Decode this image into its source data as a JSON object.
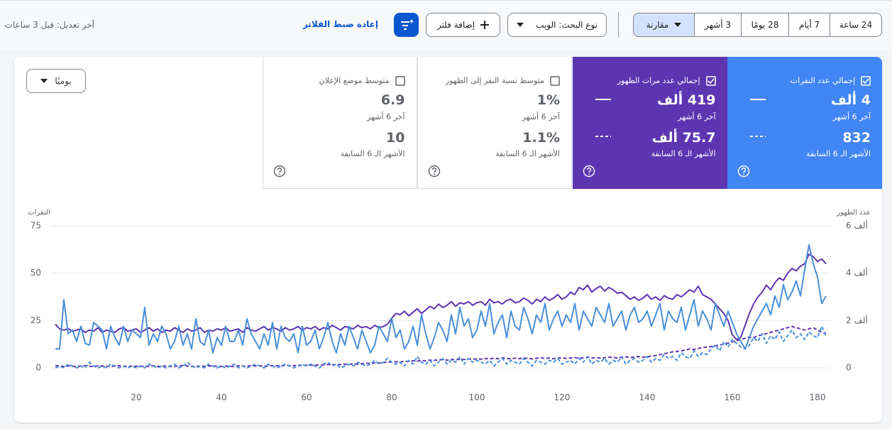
{
  "toolbar": {
    "date_ranges": [
      "24 ساعة",
      "7 أيام",
      "28 يومًا",
      "3 أشهر"
    ],
    "compare": "مقارنة",
    "search_type": "نوع البحث: الويب",
    "add_filter": "إضافة فلتر",
    "reset_filters": "إعادة ضبط الفلاتر",
    "last_updated": "آخر تعديل: قبل 3 ساعات"
  },
  "granularity": "يوميًا",
  "metrics": [
    {
      "label": "إجمالي عدد النقرات",
      "checked": true,
      "color": "#4285f4",
      "current": "4 ألف",
      "current_period": "آخر 6 أشهر",
      "previous": "832",
      "previous_period": "الأشهر الـ 6 السابقة"
    },
    {
      "label": "إجمالي عدد مرات الظهور",
      "checked": true,
      "color": "#5e35b1",
      "current": "419 ألف",
      "current_period": "آخر 6 أشهر",
      "previous": "75.7 ألف",
      "previous_period": "الأشهر الـ 6 السابقة"
    },
    {
      "label": "متوسط نسبة النقر إلى الظهور",
      "checked": false,
      "color": "#ffffff",
      "current": "1%",
      "current_period": "آخر 6 أشهر",
      "previous": "1.1%",
      "previous_period": "الأشهر الـ 6 السابقة"
    },
    {
      "label": "متوسط موضع الإعلان",
      "checked": false,
      "color": "#ffffff",
      "current": "6.9",
      "current_period": "آخر 6 أشهر",
      "previous": "10",
      "previous_period": "الأشهر الـ 6 السابقة"
    }
  ],
  "chart_data": {
    "type": "line",
    "ylabel": "النقرات",
    "y2label": "عدد الظهور",
    "grid": true,
    "xlim": [
      0,
      183
    ],
    "xticks": [
      20,
      40,
      60,
      80,
      100,
      120,
      140,
      160,
      180
    ],
    "ylim": [
      0,
      75
    ],
    "yticks": [
      0,
      25,
      50,
      75
    ],
    "y2lim": [
      0,
      6000
    ],
    "y2ticks": [
      0,
      {
        "value": 2000,
        "label": "2 ألف"
      },
      {
        "value": 4000,
        "label": "4 ألف"
      },
      {
        "value": 6000,
        "label": "6 ألف"
      }
    ],
    "x": [
      1,
      2,
      3,
      4,
      5,
      6,
      7,
      8,
      9,
      10,
      11,
      12,
      13,
      14,
      15,
      16,
      17,
      18,
      19,
      20,
      21,
      22,
      23,
      24,
      25,
      26,
      27,
      28,
      29,
      30,
      31,
      32,
      33,
      34,
      35,
      36,
      37,
      38,
      39,
      40,
      41,
      42,
      43,
      44,
      45,
      46,
      47,
      48,
      49,
      50,
      51,
      52,
      53,
      54,
      55,
      56,
      57,
      58,
      59,
      60,
      61,
      62,
      63,
      64,
      65,
      66,
      67,
      68,
      69,
      70,
      71,
      72,
      73,
      74,
      75,
      76,
      77,
      78,
      79,
      80,
      81,
      82,
      83,
      84,
      85,
      86,
      87,
      88,
      89,
      90,
      91,
      92,
      93,
      94,
      95,
      96,
      97,
      98,
      99,
      100,
      101,
      102,
      103,
      104,
      105,
      106,
      107,
      108,
      109,
      110,
      111,
      112,
      113,
      114,
      115,
      116,
      117,
      118,
      119,
      120,
      121,
      122,
      123,
      124,
      125,
      126,
      127,
      128,
      129,
      130,
      131,
      132,
      133,
      134,
      135,
      136,
      137,
      138,
      139,
      140,
      141,
      142,
      143,
      144,
      145,
      146,
      147,
      148,
      149,
      150,
      151,
      152,
      153,
      154,
      155,
      156,
      157,
      158,
      159,
      160,
      161,
      162,
      163,
      164,
      165,
      166,
      167,
      168,
      169,
      170,
      171,
      172,
      173,
      174,
      175,
      176,
      177,
      178,
      179,
      180,
      181,
      182
    ],
    "series": [
      {
        "color": "#5e35b1",
        "dashed": true,
        "axis": "y2",
        "values": [
          100,
          80,
          60,
          90,
          70,
          60,
          80,
          100,
          70,
          60,
          90,
          80,
          70,
          60,
          80,
          90,
          70,
          60,
          80,
          70,
          60,
          80,
          70,
          90,
          60,
          70,
          80,
          60,
          70,
          90,
          100,
          80,
          70,
          60,
          80,
          70,
          90,
          80,
          70,
          60,
          80,
          70,
          60,
          90,
          80,
          70,
          100,
          80,
          90,
          70,
          80,
          100,
          90,
          80,
          110,
          100,
          90,
          120,
          100,
          110,
          120,
          110,
          130,
          120,
          140,
          130,
          150,
          140,
          160,
          150,
          170,
          160,
          180,
          200,
          190,
          210,
          200,
          230,
          250,
          240,
          260,
          250,
          280,
          270,
          300,
          290,
          310,
          300,
          330,
          320,
          340,
          350,
          330,
          360,
          340,
          370,
          350,
          380,
          360,
          390,
          370,
          400,
          380,
          410,
          390,
          420,
          400,
          380,
          410,
          390,
          420,
          400,
          380,
          410,
          430,
          400,
          420,
          390,
          410,
          430,
          400,
          420,
          440,
          410,
          430,
          450,
          420,
          440,
          410,
          430,
          460,
          440,
          420,
          450,
          470,
          440,
          460,
          480,
          450,
          470,
          500,
          520,
          560,
          600,
          640,
          680,
          700,
          720,
          760,
          800,
          780,
          820,
          860,
          880,
          900,
          940,
          960,
          1000,
          1050,
          1100,
          1150,
          1200,
          1250,
          1300,
          1280,
          1350,
          1400,
          1450,
          1500,
          1550,
          1600,
          1650,
          1700,
          1750,
          1700,
          1650,
          1600,
          1650,
          1700,
          1600,
          1500,
          1450
        ]
      },
      {
        "color": "#4a8fd8",
        "dashed": true,
        "values": [
          0,
          1,
          0,
          2,
          1,
          0,
          1,
          0,
          3,
          1,
          0,
          1,
          0,
          2,
          1,
          0,
          1,
          0,
          1,
          0,
          1,
          0,
          2,
          1,
          0,
          1,
          0,
          1,
          2,
          0,
          1,
          3,
          1,
          0,
          1,
          0,
          2,
          1,
          0,
          1,
          0,
          1,
          2,
          0,
          1,
          0,
          1,
          2,
          1,
          0,
          2,
          1,
          0,
          1,
          2,
          1,
          0,
          1,
          2,
          1,
          2,
          1,
          0,
          2,
          3,
          1,
          2,
          0,
          1,
          2,
          1,
          3,
          2,
          1,
          2,
          4,
          2,
          3,
          5,
          3,
          2,
          3,
          1,
          4,
          2,
          6,
          3,
          2,
          4,
          1,
          3,
          5,
          2,
          4,
          3,
          6,
          2,
          5,
          3,
          4,
          3,
          2,
          4,
          1,
          3,
          5,
          2,
          4,
          3,
          2,
          5,
          3,
          1,
          4,
          3,
          2,
          4,
          3,
          5,
          2,
          3,
          4,
          2,
          5,
          3,
          6,
          2,
          4,
          3,
          5,
          2,
          4,
          3,
          6,
          2,
          4,
          5,
          3,
          4,
          6,
          3,
          5,
          4,
          7,
          5,
          6,
          4,
          8,
          6,
          5,
          9,
          6,
          8,
          7,
          10,
          12,
          9,
          14,
          11,
          15,
          13,
          11,
          10,
          12,
          16,
          14,
          18,
          13,
          17,
          15,
          19,
          14,
          17,
          20,
          16,
          18,
          15,
          19,
          17,
          16,
          22,
          17
        ]
      },
      {
        "color": "#5e35b1",
        "dashed": false,
        "axis": "y2",
        "values": [
          1850,
          1650,
          1600,
          1650,
          1550,
          1600,
          1650,
          1500,
          1600,
          1550,
          1700,
          1500,
          1600,
          1550,
          1500,
          1650,
          1700,
          1550,
          1600,
          1650,
          1500,
          1600,
          1700,
          1550,
          1650,
          1500,
          1600,
          1550,
          1700,
          1600,
          1500,
          1650,
          1550,
          1600,
          1700,
          1500,
          1600,
          1550,
          1650,
          1600,
          1700,
          1550,
          1600,
          1650,
          1500,
          1700,
          1600,
          1550,
          1650,
          1750,
          1600,
          1700,
          1650,
          1550,
          1700,
          1600,
          1650,
          1750,
          1600,
          1700,
          1650,
          1750,
          1600,
          1700,
          1650,
          1800,
          1700,
          1600,
          1750,
          1700,
          1650,
          1800,
          1700,
          1750,
          1650,
          1800,
          1700,
          1750,
          1850,
          2100,
          2300,
          2250,
          2400,
          2200,
          2350,
          2500,
          2300,
          2450,
          2600,
          2500,
          2700,
          2550,
          2650,
          2800,
          2600,
          2750,
          2700,
          2800,
          2650,
          2750,
          2800,
          2650,
          2900,
          2750,
          2800,
          2700,
          2850,
          2900,
          2750,
          2800,
          2950,
          2850,
          2700,
          2900,
          2800,
          3000,
          2850,
          2950,
          3100,
          2900,
          3000,
          3200,
          3100,
          3400,
          3300,
          3500,
          3200,
          3350,
          3450,
          3250,
          3400,
          3300,
          3150,
          3200,
          3050,
          2900,
          3000,
          2850,
          2950,
          3100,
          2900,
          3000,
          2850,
          3050,
          2950,
          2900,
          3100,
          3000,
          3150,
          3300,
          3200,
          3450,
          3100,
          3000,
          2900,
          2700,
          2500,
          2300,
          2000,
          1400,
          1200,
          1300,
          1800,
          2300,
          2700,
          3000,
          3200,
          3500,
          3300,
          3600,
          3800,
          3700,
          4000,
          4200,
          4100,
          4300,
          4400,
          4800,
          4700,
          4500,
          4600,
          4400
        ]
      },
      {
        "color": "#4a8fd8",
        "dashed": false,
        "values": [
          10,
          10,
          36,
          18,
          20,
          14,
          22,
          13,
          12,
          24,
          22,
          20,
          10,
          22,
          16,
          12,
          22,
          14,
          20,
          18,
          16,
          32,
          12,
          18,
          14,
          22,
          18,
          10,
          14,
          22,
          12,
          18,
          10,
          26,
          14,
          12,
          20,
          8,
          16,
          12,
          22,
          14,
          14,
          20,
          12,
          26,
          18,
          14,
          10,
          18,
          12,
          24,
          10,
          22,
          16,
          14,
          18,
          8,
          22,
          12,
          14,
          20,
          10,
          16,
          24,
          14,
          8,
          18,
          12,
          22,
          16,
          10,
          20,
          14,
          8,
          12,
          22,
          18,
          14,
          26,
          16,
          20,
          10,
          14,
          22,
          12,
          28,
          18,
          10,
          16,
          24,
          20,
          14,
          28,
          18,
          32,
          22,
          26,
          16,
          20,
          30,
          22,
          34,
          18,
          24,
          28,
          16,
          30,
          22,
          20,
          32,
          26,
          18,
          28,
          24,
          34,
          20,
          26,
          30,
          22,
          28,
          24,
          34,
          20,
          30,
          26,
          22,
          32,
          28,
          24,
          34,
          22,
          26,
          30,
          20,
          28,
          32,
          24,
          26,
          30,
          22,
          28,
          34,
          20,
          30,
          26,
          24,
          32,
          20,
          28,
          36,
          22,
          30,
          26,
          20,
          34,
          28,
          22,
          30,
          24,
          18,
          14,
          10,
          16,
          22,
          26,
          30,
          34,
          28,
          38,
          32,
          44,
          36,
          40,
          46,
          38,
          52,
          65,
          55,
          48,
          34,
          38
        ]
      }
    ]
  }
}
